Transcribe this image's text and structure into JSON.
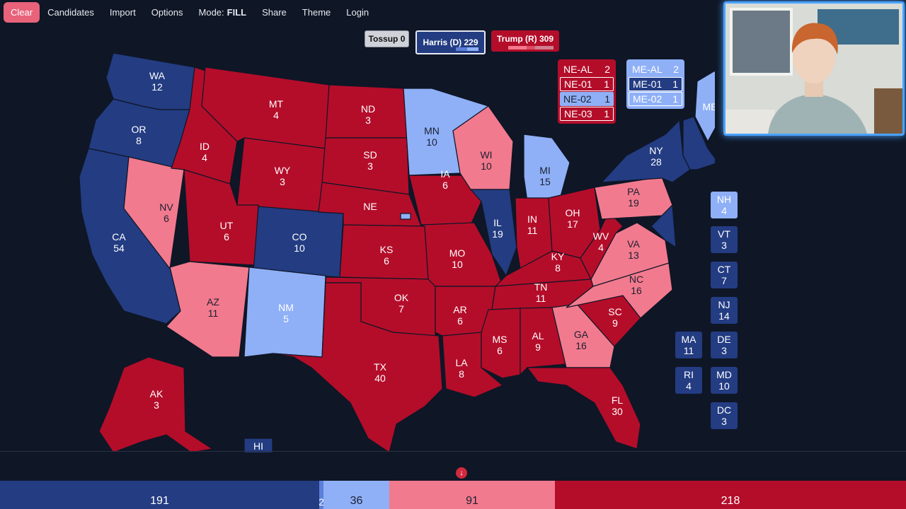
{
  "nav": {
    "clear": "Clear",
    "candidates": "Candidates",
    "import": "Import",
    "options": "Options",
    "mode_label": "Mode:",
    "mode_value": "FILL",
    "share": "Share",
    "theme": "Theme",
    "login": "Login"
  },
  "scores": {
    "tossup": "Tossup 0",
    "harris": "Harris (D) 229",
    "trump": "Trump (R) 309"
  },
  "colors": {
    "safe_d": "#233c82",
    "lean_d": "#8fb0f7",
    "lean_r": "#f27a8e",
    "safe_r": "#b40d2a",
    "background": "#0f1626"
  },
  "states": {
    "WA": {
      "abbr": "WA",
      "ev": "12"
    },
    "OR": {
      "abbr": "OR",
      "ev": "8"
    },
    "CA": {
      "abbr": "CA",
      "ev": "54"
    },
    "NV": {
      "abbr": "NV",
      "ev": "6"
    },
    "ID": {
      "abbr": "ID",
      "ev": "4"
    },
    "MT": {
      "abbr": "MT",
      "ev": "4"
    },
    "WY": {
      "abbr": "WY",
      "ev": "3"
    },
    "UT": {
      "abbr": "UT",
      "ev": "6"
    },
    "AZ": {
      "abbr": "AZ",
      "ev": "11"
    },
    "CO": {
      "abbr": "CO",
      "ev": "10"
    },
    "NM": {
      "abbr": "NM",
      "ev": "5"
    },
    "ND": {
      "abbr": "ND",
      "ev": "3"
    },
    "SD": {
      "abbr": "SD",
      "ev": "3"
    },
    "NE": {
      "abbr": "NE",
      "ev": ""
    },
    "KS": {
      "abbr": "KS",
      "ev": "6"
    },
    "OK": {
      "abbr": "OK",
      "ev": "7"
    },
    "TX": {
      "abbr": "TX",
      "ev": "40"
    },
    "MN": {
      "abbr": "MN",
      "ev": "10"
    },
    "IA": {
      "abbr": "IA",
      "ev": "6"
    },
    "MO": {
      "abbr": "MO",
      "ev": "10"
    },
    "AR": {
      "abbr": "AR",
      "ev": "6"
    },
    "LA": {
      "abbr": "LA",
      "ev": "8"
    },
    "WI": {
      "abbr": "WI",
      "ev": "10"
    },
    "IL": {
      "abbr": "IL",
      "ev": "19"
    },
    "MI": {
      "abbr": "MI",
      "ev": "15"
    },
    "IN": {
      "abbr": "IN",
      "ev": "11"
    },
    "OH": {
      "abbr": "OH",
      "ev": "17"
    },
    "KY": {
      "abbr": "KY",
      "ev": "8"
    },
    "TN": {
      "abbr": "TN",
      "ev": "11"
    },
    "MS": {
      "abbr": "MS",
      "ev": "6"
    },
    "AL": {
      "abbr": "AL",
      "ev": "9"
    },
    "GA": {
      "abbr": "GA",
      "ev": "16"
    },
    "FL": {
      "abbr": "FL",
      "ev": "30"
    },
    "SC": {
      "abbr": "SC",
      "ev": "9"
    },
    "NC": {
      "abbr": "NC",
      "ev": "16"
    },
    "VA": {
      "abbr": "VA",
      "ev": "13"
    },
    "WV": {
      "abbr": "WV",
      "ev": "4"
    },
    "PA": {
      "abbr": "PA",
      "ev": "19"
    },
    "NY": {
      "abbr": "NY",
      "ev": "28"
    },
    "ME": {
      "abbr": "ME",
      "ev": ""
    },
    "AK": {
      "abbr": "AK",
      "ev": "3"
    },
    "HI": {
      "abbr": "HI",
      "ev": ""
    }
  },
  "ne_districts": [
    {
      "label": "NE-AL",
      "ev": "2"
    },
    {
      "label": "NE-01",
      "ev": "1"
    },
    {
      "label": "NE-02",
      "ev": "1"
    },
    {
      "label": "NE-03",
      "ev": "1"
    }
  ],
  "me_districts": [
    {
      "label": "ME-AL",
      "ev": "2"
    },
    {
      "label": "ME-01",
      "ev": "1"
    },
    {
      "label": "ME-02",
      "ev": "1"
    }
  ],
  "small_states": {
    "NH": {
      "abbr": "NH",
      "ev": "4"
    },
    "VT": {
      "abbr": "VT",
      "ev": "3"
    },
    "CT": {
      "abbr": "CT",
      "ev": "7"
    },
    "NJ": {
      "abbr": "NJ",
      "ev": "14"
    },
    "MA": {
      "abbr": "MA",
      "ev": "11"
    },
    "DE": {
      "abbr": "DE",
      "ev": "3"
    },
    "RI": {
      "abbr": "RI",
      "ev": "4"
    },
    "MD": {
      "abbr": "MD",
      "ev": "10"
    },
    "DC": {
      "abbr": "DC",
      "ev": "3"
    }
  },
  "tally": {
    "safe_d": "191",
    "tilt_d": "2",
    "lean_d": "36",
    "lean_r": "91",
    "safe_r": "218"
  }
}
